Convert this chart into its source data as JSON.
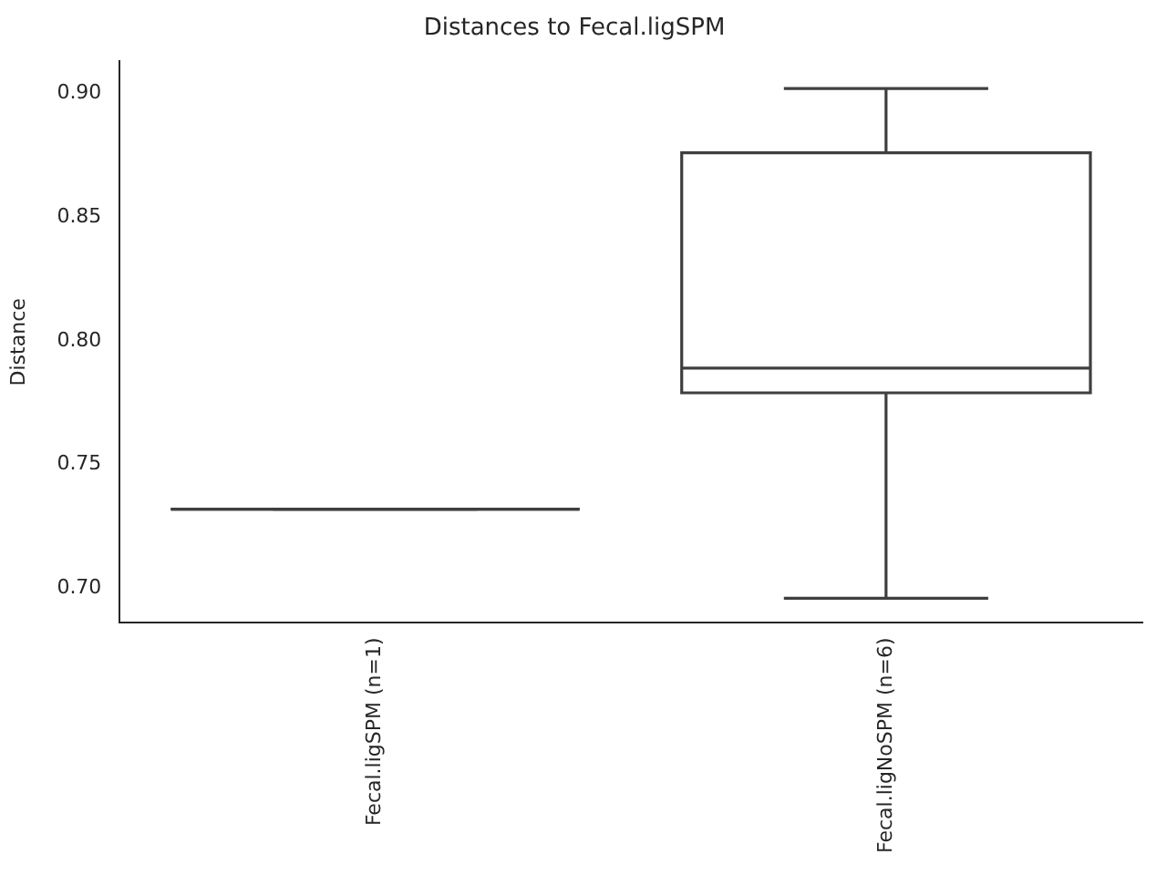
{
  "chart_data": {
    "type": "box",
    "title": "Distances to Fecal.ligSPM",
    "ylabel": "Distance",
    "categories": [
      "Fecal.ligSPM (n=1)",
      "Fecal.ligNoSPM (n=6)"
    ],
    "boxes": [
      {
        "low": 0.732,
        "q1": 0.732,
        "median": 0.732,
        "q3": 0.732,
        "high": 0.732
      },
      {
        "low": 0.696,
        "q1": 0.779,
        "median": 0.789,
        "q3": 0.876,
        "high": 0.902
      }
    ],
    "color": "#3f3f3f",
    "ylim": [
      0.686,
      0.913
    ],
    "yticks": [
      {
        "value": 0.7,
        "label": "0.70"
      },
      {
        "value": 0.75,
        "label": "0.75"
      },
      {
        "value": 0.8,
        "label": "0.80"
      },
      {
        "value": 0.85,
        "label": "0.85"
      },
      {
        "value": 0.9,
        "label": "0.90"
      }
    ]
  }
}
